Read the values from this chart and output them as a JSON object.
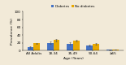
{
  "categories": [
    "All Adults",
    "18-34",
    "35-49",
    "50-64",
    "≥65"
  ],
  "diabetes_values": [
    10,
    20,
    18,
    14,
    2
  ],
  "no_diabetes_values": [
    19,
    27,
    25,
    17,
    3
  ],
  "diabetes_errors": [
    2.0,
    3.5,
    2.8,
    2.2,
    0.6
  ],
  "no_diabetes_errors": [
    1.2,
    2.8,
    2.2,
    1.8,
    0.4
  ],
  "diabetes_color": "#4472c4",
  "no_diabetes_color": "#e8a800",
  "background_color": "#f2ead8",
  "ylabel": "Prevalence (%)",
  "xlabel": "Age (Years)",
  "ylim": [
    0,
    100
  ],
  "yticks": [
    0,
    20,
    40,
    60,
    80,
    100
  ],
  "legend_labels": [
    "Diabetes",
    "No diabetes"
  ],
  "bar_width": 0.32,
  "axis_fontsize": 3.2,
  "tick_fontsize": 3.0,
  "legend_fontsize": 3.0
}
